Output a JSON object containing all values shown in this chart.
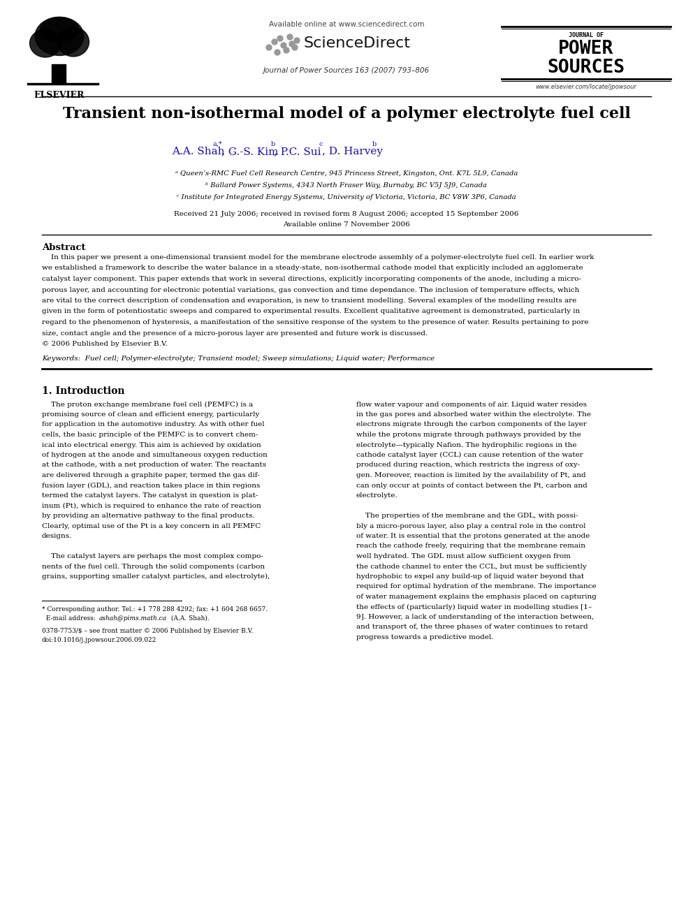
{
  "bg_color": "#ffffff",
  "page_width": 9.92,
  "page_height": 13.23,
  "header": {
    "elsevier_text": "ELSEVIER",
    "available_online": "Available online at www.sciencedirect.com",
    "sciencedirect": "ScienceDirect",
    "journal_name": "Journal of Power Sources 163 (2007) 793–806",
    "journal_of": "JOURNAL OF",
    "power": "POWER",
    "sources": "SOURCES",
    "website": "www.elsevier.com/locate/jpowsour"
  },
  "title": "Transient non-isothermal model of a polymer electrolyte fuel cell",
  "received": "Received 21 July 2006; received in revised form 8 August 2006; accepted 15 September 2006",
  "available": "Available online 7 November 2006",
  "abstract_title": "Abstract",
  "keywords": "Keywords:  Fuel cell; Polymer-electrolyte; Transient model; Sweep simulations; Liquid water; Performance",
  "section1_title": "1. Introduction",
  "footnote_line1": "* Corresponding author. Tel.: +1 778 288 4292; fax: +1 604 268 6657.",
  "footnote_email_label": "  E-mail address: ",
  "footnote_email": "ashah@pims.math.ca",
  "footnote_email_end": " (A.A. Shah).",
  "footer_line1": "0378-7753/$ – see front matter © 2006 Published by Elsevier B.V.",
  "footer_line2": "doi:10.1016/j.jpowsour.2006.09.022",
  "aff1": "a Queen’s-RMC Fuel Cell Research Centre, 945 Princess Street, Kingston, Ont. K7L 5L9, Canada",
  "aff2": "b Ballard Power Systems, 4343 North Fraser Way, Burnaby, BC V5J 5J9, Canada",
  "aff3": "c Institute for Integrated Energy Systems, University of Victoria, Victoria, BC V8W 3P6, Canada"
}
